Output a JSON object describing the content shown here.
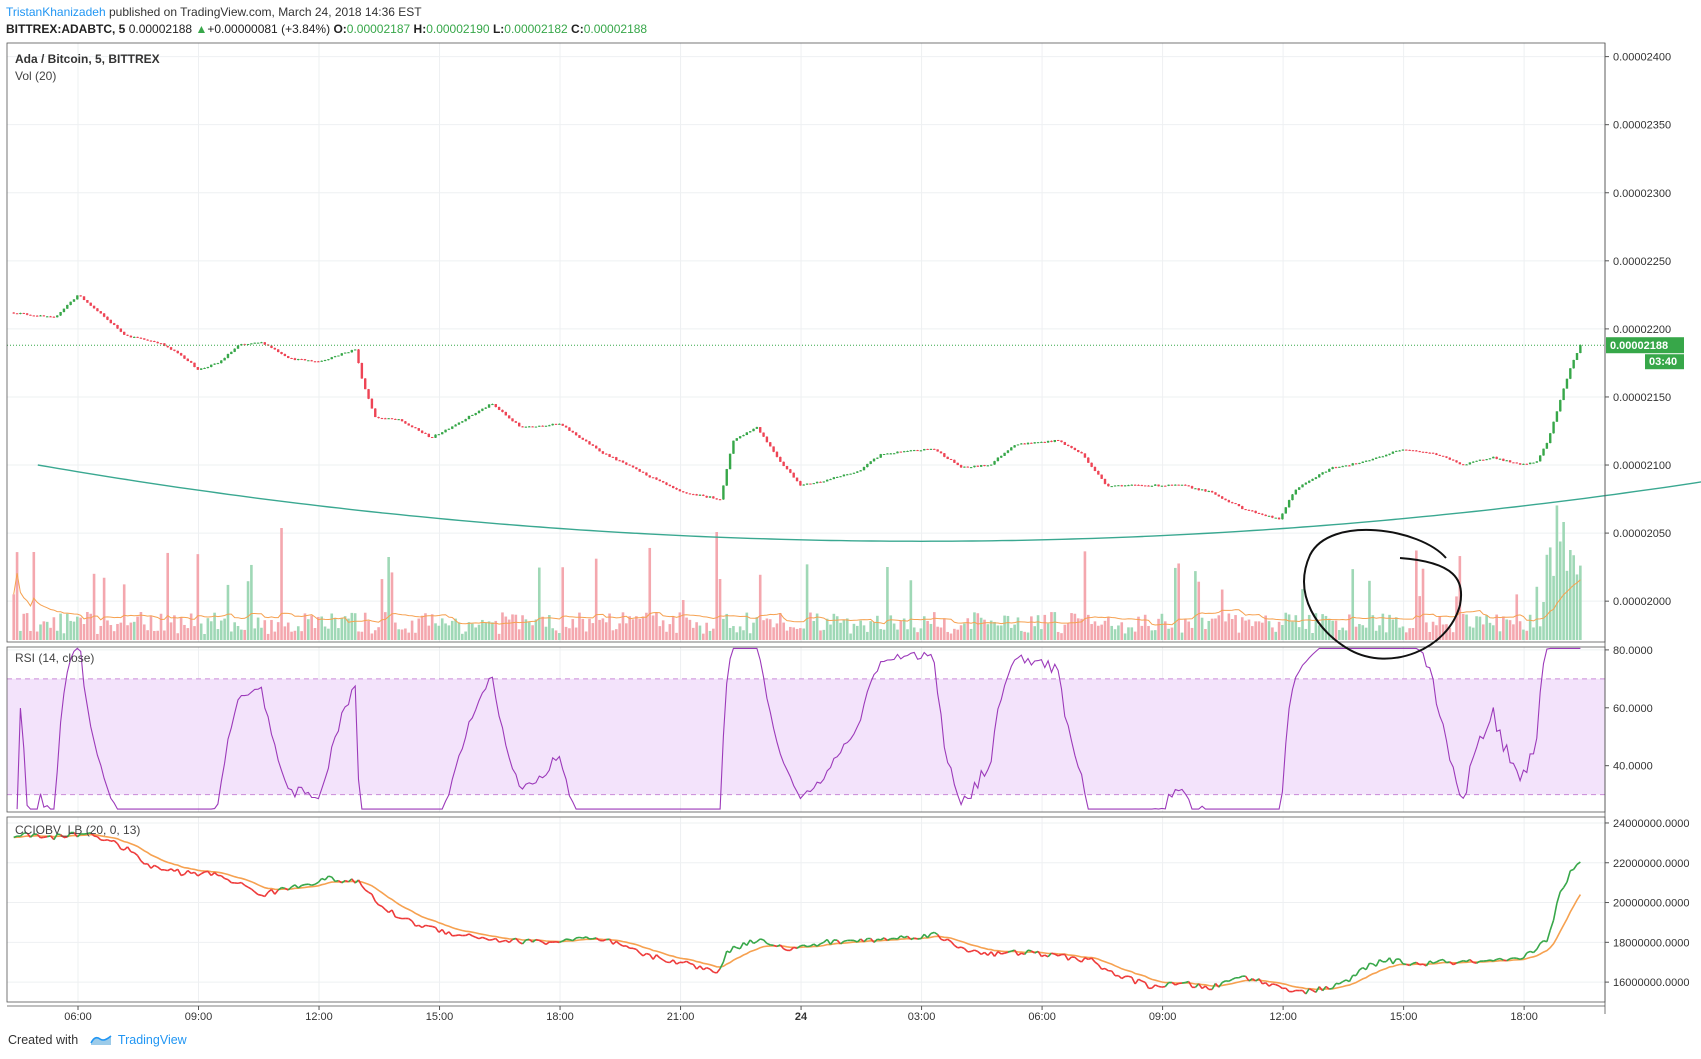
{
  "header": {
    "author": "TristanKhanizadeh",
    "published": "published on TradingView.com, March 24, 2018 14:36 EST",
    "symbol": "BITTREX:ADABTC, 5",
    "last": "0.00002188",
    "change_arrow": "▲",
    "change": "+0.00000081 (+3.84%)",
    "o_label": "O:",
    "o": "0.00002187",
    "h_label": "H:",
    "h": "0.00002190",
    "l_label": "L:",
    "l": "0.00002182",
    "c_label": "C:",
    "c": "0.00002188"
  },
  "panes": {
    "main": {
      "title": "Ada / Bitcoin, 5, BITTREX",
      "volume": "Vol (20)"
    },
    "rsi": {
      "title": "RSI (14, close)"
    },
    "cciobv": {
      "title": "CCIOBV_LB (20, 0, 13)"
    }
  },
  "price_badge": {
    "value": "0.00002188",
    "countdown": "03:40"
  },
  "footer": {
    "created_with": "Created with",
    "brand": "TradingView"
  },
  "colors": {
    "up": "#37a749",
    "down": "#ee4455",
    "vol_up": "#9fd8b6",
    "vol_down": "#f4a7ae",
    "vol_ma": "#f6a150",
    "rsi": "#9c3aba",
    "rsi_band": "#f3e3fb",
    "curve": "#3aa891",
    "obv_up": "#37a749",
    "obv_down": "#ee3a3a",
    "obv_signal": "#f6a150",
    "badge": "#37a749"
  },
  "chart_data": [
    {
      "type": "candlestick",
      "title": "Ada / Bitcoin, 5, BITTREX",
      "x_tick_labels": [
        "06:00",
        "09:00",
        "12:00",
        "15:00",
        "18:00",
        "21:00",
        "24",
        "03:00",
        "06:00",
        "09:00",
        "12:00",
        "15:00",
        "18:00"
      ],
      "y_tick_labels": [
        "0.00002400",
        "0.00002350",
        "0.00002300",
        "0.00002250",
        "0.00002200",
        "0.00002150",
        "0.00002100",
        "0.00002050",
        "0.00002000"
      ],
      "ylim": [
        1.97e-05,
        2.41e-05
      ],
      "anchors": [
        {
          "t": -1.6,
          "p": 2.212e-05
        },
        {
          "t": -0.6,
          "p": 2.208e-05
        },
        {
          "t": 0.0,
          "p": 2.225e-05
        },
        {
          "t": 1.2,
          "p": 2.195e-05
        },
        {
          "t": 2.0,
          "p": 2.19e-05
        },
        {
          "t": 2.6,
          "p": 2.18e-05
        },
        {
          "t": 3.0,
          "p": 2.17e-05
        },
        {
          "t": 3.5,
          "p": 2.175e-05
        },
        {
          "t": 4.0,
          "p": 2.188e-05
        },
        {
          "t": 4.6,
          "p": 2.19e-05
        },
        {
          "t": 5.3,
          "p": 2.178e-05
        },
        {
          "t": 6.0,
          "p": 2.176e-05
        },
        {
          "t": 6.9,
          "p": 2.185e-05
        },
        {
          "t": 7.1,
          "p": 2.16e-05
        },
        {
          "t": 7.4,
          "p": 2.135e-05
        },
        {
          "t": 8.0,
          "p": 2.133e-05
        },
        {
          "t": 8.8,
          "p": 2.12e-05
        },
        {
          "t": 10.3,
          "p": 2.145e-05
        },
        {
          "t": 11.0,
          "p": 2.128e-05
        },
        {
          "t": 12.0,
          "p": 2.13e-05
        },
        {
          "t": 13.0,
          "p": 2.11e-05
        },
        {
          "t": 14.0,
          "p": 2.095e-05
        },
        {
          "t": 15.0,
          "p": 2.08e-05
        },
        {
          "t": 16.0,
          "p": 2.075e-05
        },
        {
          "t": 16.3,
          "p": 2.118e-05
        },
        {
          "t": 16.9,
          "p": 2.128e-05
        },
        {
          "t": 17.5,
          "p": 2.102e-05
        },
        {
          "t": 18.0,
          "p": 2.085e-05
        },
        {
          "t": 18.5,
          "p": 2.088e-05
        },
        {
          "t": 19.4,
          "p": 2.095e-05
        },
        {
          "t": 20.0,
          "p": 2.108e-05
        },
        {
          "t": 21.3,
          "p": 2.112e-05
        },
        {
          "t": 22.0,
          "p": 2.098e-05
        },
        {
          "t": 22.7,
          "p": 2.1e-05
        },
        {
          "t": 23.3,
          "p": 2.115e-05
        },
        {
          "t": 24.4,
          "p": 2.118e-05
        },
        {
          "t": 25.0,
          "p": 2.108e-05
        },
        {
          "t": 25.6,
          "p": 2.085e-05
        },
        {
          "t": 26.6,
          "p": 2.085e-05
        },
        {
          "t": 27.5,
          "p": 2.085e-05
        },
        {
          "t": 28.2,
          "p": 2.08e-05
        },
        {
          "t": 29.0,
          "p": 2.068e-05
        },
        {
          "t": 29.9,
          "p": 2.06e-05
        },
        {
          "t": 30.3,
          "p": 2.082e-05
        },
        {
          "t": 31.2,
          "p": 2.098e-05
        },
        {
          "t": 32.0,
          "p": 2.102e-05
        },
        {
          "t": 33.0,
          "p": 2.112e-05
        },
        {
          "t": 33.8,
          "p": 2.108e-05
        },
        {
          "t": 34.5,
          "p": 2.1e-05
        },
        {
          "t": 35.2,
          "p": 2.106e-05
        },
        {
          "t": 35.9,
          "p": 2.1e-05
        },
        {
          "t": 36.3,
          "p": 2.102e-05
        },
        {
          "t": 36.6,
          "p": 2.118e-05
        },
        {
          "t": 37.0,
          "p": 2.158e-05
        },
        {
          "t": 37.2,
          "p": 2.175e-05
        },
        {
          "t": 37.4,
          "p": 2.188e-05
        }
      ],
      "last_price": 2.188e-05,
      "curve_quadratic": {
        "vertex_t": 21.0,
        "vertex_p": 2.044e-05,
        "left_t": -1.0,
        "left_p": 2.1e-05,
        "right_t": 42.6,
        "right_p": 2.088e-05
      }
    },
    {
      "type": "bar",
      "name": "Vol (20)"
    },
    {
      "type": "line",
      "name": "RSI (14, close)",
      "y_tick_labels": [
        "80.0000",
        "60.0000",
        "40.0000"
      ],
      "ylim": [
        24,
        81
      ],
      "bands": [
        30,
        70
      ]
    },
    {
      "type": "line",
      "name": "CCIOBV_LB (20, 0, 13)",
      "y_tick_labels": [
        "24000000.0000",
        "22000000.0000",
        "20000000.0000",
        "18000000.0000",
        "16000000.0000"
      ],
      "ylim": [
        15000000,
        24300000
      ],
      "anchors": [
        {
          "t": -1.6,
          "v": 23400000
        },
        {
          "t": -0.5,
          "v": 23300000
        },
        {
          "t": 0.3,
          "v": 23500000
        },
        {
          "t": 1.2,
          "v": 22700000
        },
        {
          "t": 1.8,
          "v": 21800000
        },
        {
          "t": 2.6,
          "v": 21500000
        },
        {
          "t": 3.5,
          "v": 21400000
        },
        {
          "t": 4.6,
          "v": 20400000
        },
        {
          "t": 5.4,
          "v": 20800000
        },
        {
          "t": 6.2,
          "v": 21200000
        },
        {
          "t": 7.0,
          "v": 21000000
        },
        {
          "t": 7.6,
          "v": 19700000
        },
        {
          "t": 8.3,
          "v": 19000000
        },
        {
          "t": 9.2,
          "v": 18500000
        },
        {
          "t": 10.5,
          "v": 18100000
        },
        {
          "t": 11.8,
          "v": 18000000
        },
        {
          "t": 12.5,
          "v": 18200000
        },
        {
          "t": 13.3,
          "v": 18000000
        },
        {
          "t": 14.2,
          "v": 17300000
        },
        {
          "t": 15.0,
          "v": 17000000
        },
        {
          "t": 15.9,
          "v": 16500000
        },
        {
          "t": 16.2,
          "v": 17600000
        },
        {
          "t": 17.0,
          "v": 18200000
        },
        {
          "t": 17.7,
          "v": 17600000
        },
        {
          "t": 18.6,
          "v": 18000000
        },
        {
          "t": 19.6,
          "v": 18100000
        },
        {
          "t": 20.4,
          "v": 18200000
        },
        {
          "t": 21.3,
          "v": 18400000
        },
        {
          "t": 22.0,
          "v": 17700000
        },
        {
          "t": 22.8,
          "v": 17400000
        },
        {
          "t": 23.6,
          "v": 17500000
        },
        {
          "t": 24.4,
          "v": 17300000
        },
        {
          "t": 25.2,
          "v": 17100000
        },
        {
          "t": 25.8,
          "v": 16400000
        },
        {
          "t": 26.7,
          "v": 15800000
        },
        {
          "t": 27.6,
          "v": 15900000
        },
        {
          "t": 28.2,
          "v": 15700000
        },
        {
          "t": 29.0,
          "v": 16300000
        },
        {
          "t": 29.8,
          "v": 15800000
        },
        {
          "t": 30.6,
          "v": 15500000
        },
        {
          "t": 31.5,
          "v": 15900000
        },
        {
          "t": 32.1,
          "v": 16800000
        },
        {
          "t": 32.6,
          "v": 17100000
        },
        {
          "t": 33.3,
          "v": 16900000
        },
        {
          "t": 34.0,
          "v": 17000000
        },
        {
          "t": 35.0,
          "v": 17000000
        },
        {
          "t": 35.9,
          "v": 17100000
        },
        {
          "t": 36.3,
          "v": 17700000
        },
        {
          "t": 36.6,
          "v": 18200000
        },
        {
          "t": 36.9,
          "v": 20500000
        },
        {
          "t": 37.2,
          "v": 21700000
        },
        {
          "t": 37.4,
          "v": 21900000
        }
      ]
    }
  ]
}
